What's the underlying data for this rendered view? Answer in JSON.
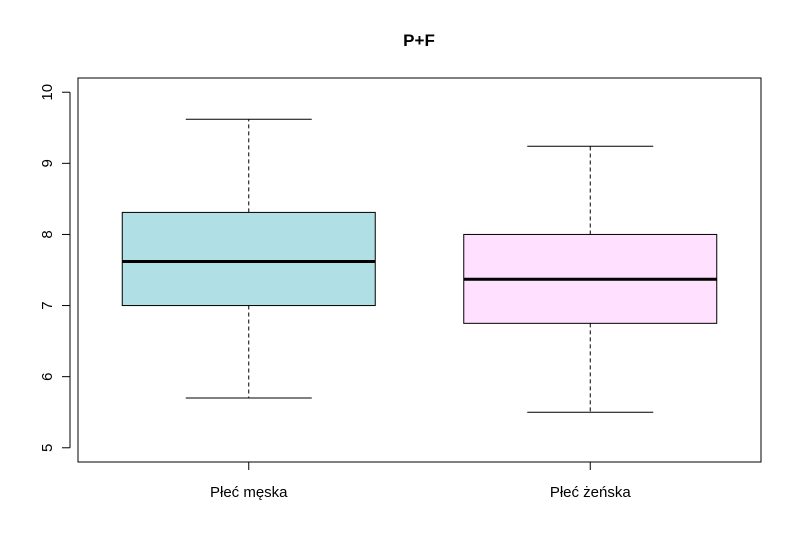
{
  "chart_data": {
    "type": "boxplot",
    "title": "P+F",
    "xlabel": "",
    "ylabel": "",
    "ylim": [
      4.8,
      10.2
    ],
    "yticks": [
      5,
      6,
      7,
      8,
      9,
      10
    ],
    "grid": false,
    "categories": [
      "Płeć męska",
      "Płeć żeńska"
    ],
    "boxes": [
      {
        "label": "Płeć męska",
        "min": 5.7,
        "q1": 7.0,
        "median": 7.62,
        "q3": 8.31,
        "max": 9.62,
        "color": "#b0e0e6"
      },
      {
        "label": "Płeć żeńska",
        "min": 5.5,
        "q1": 6.75,
        "median": 7.37,
        "q3": 8.0,
        "max": 9.24,
        "color": "#ffe0ff"
      }
    ]
  }
}
